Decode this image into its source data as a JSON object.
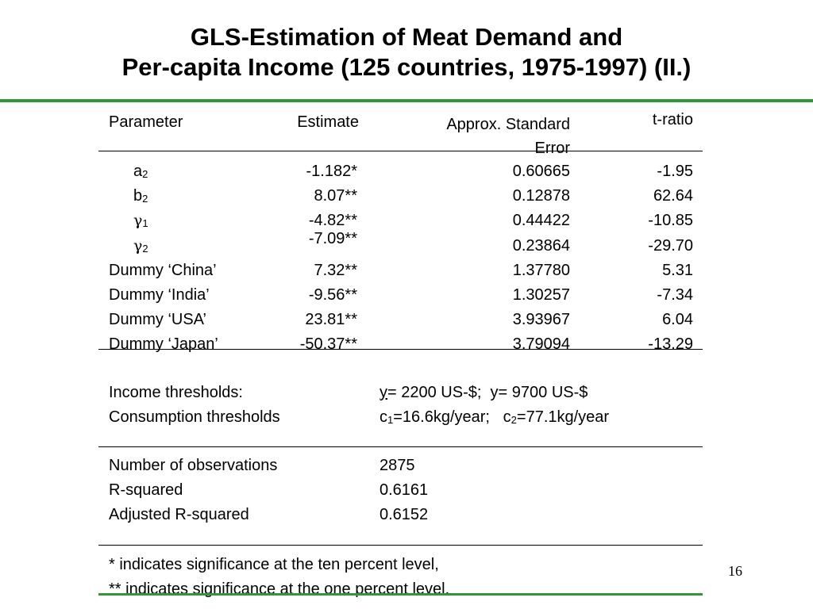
{
  "title": {
    "line1": "GLS-Estimation of Meat Demand and",
    "line2": "Per-capita Income (125 countries, 1975-1997) (II.)"
  },
  "table": {
    "headers": {
      "parameter": "Parameter",
      "estimate": "Estimate",
      "std_error_line1": "Approx. Standard",
      "std_error_line2": "Error",
      "t_ratio": "t-ratio"
    },
    "rows": [
      {
        "base": "a",
        "sub": "2",
        "estimate": "-1.182*",
        "std_error": "0.60665",
        "t_ratio": "-1.95"
      },
      {
        "base": "b",
        "sub": "2",
        "estimate": "8.07**",
        "std_error": "0.12878",
        "t_ratio": "62.64"
      },
      {
        "base": "γ",
        "sub": "1",
        "estimate": "-4.82**",
        "std_error": "0.44422",
        "t_ratio": "-10.85"
      },
      {
        "base": "γ",
        "sub": "2",
        "estimate": "-7.09**",
        "std_error": "0.23864",
        "t_ratio": "-29.70"
      },
      {
        "label": "Dummy ‘China’",
        "estimate": "7.32**",
        "std_error": "1.37780",
        "t_ratio": "5.31"
      },
      {
        "label": "Dummy ‘India’",
        "estimate": "-9.56**",
        "std_error": "1.30257",
        "t_ratio": "-7.34"
      },
      {
        "label": "Dummy ‘USA’",
        "estimate": "23.81**",
        "std_error": "3.93967",
        "t_ratio": "6.04"
      },
      {
        "label": "Dummy ‘Japan’",
        "estimate": "-50.37**",
        "std_error": "3.79094",
        "t_ratio": "-13.29"
      }
    ]
  },
  "thresholds": {
    "income_label": "Income thresholds:",
    "income_y_low": "y",
    "income_y_low_value": "= 2200 US-$;",
    "income_y_high": "y",
    "income_y_high_value": "= 9700 US-$",
    "consumption_label": "Consumption thresholds",
    "c1_base": "c",
    "c1_sub": "1",
    "c1_value": "=16.6kg/year;",
    "c2_base": "c",
    "c2_sub": "2",
    "c2_value": "=77.1kg/year"
  },
  "stats": {
    "observations_label": "Number of observations",
    "observations_value": "2875",
    "r_squared_label": "R-squared",
    "r_squared_value": "0.6161",
    "adj_r_squared_label": "Adjusted R-squared",
    "adj_r_squared_value": "0.6152"
  },
  "footnotes": {
    "single_star": "*   indicates significance at the ten percent level,",
    "double_star": "** indicates significance at the one percent level."
  },
  "page_number": "16",
  "colors": {
    "accent_rule": "#2e9b32"
  }
}
